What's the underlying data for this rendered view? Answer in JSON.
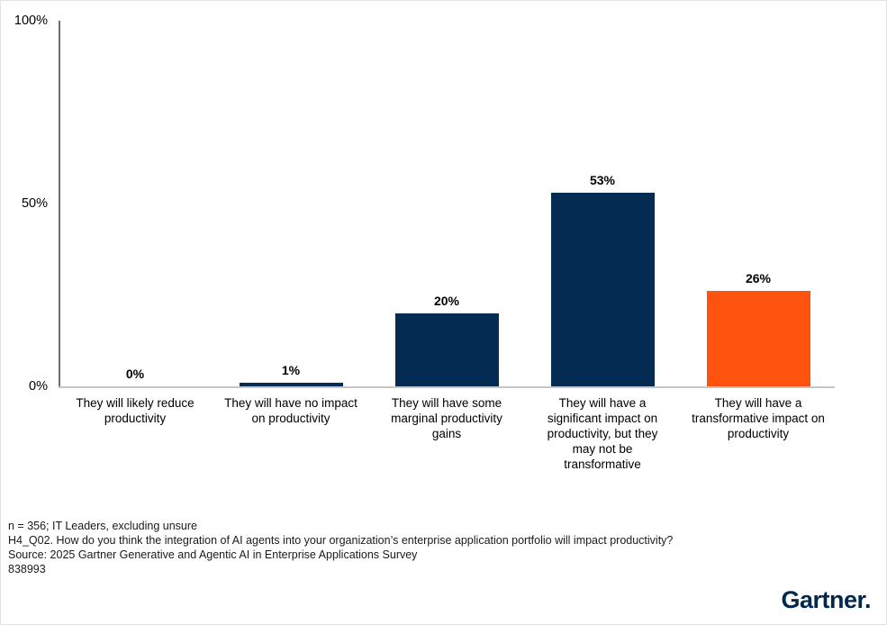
{
  "colors": {
    "bar_navy": "#042b52",
    "bar_orange": "#ff530f",
    "y_axis_line": "#6e6e6e",
    "x_axis_line": "#c6c6c6",
    "logo_navy": "#00284d",
    "text": "#000000",
    "footer_text": "#1a1a1a"
  },
  "chart_data": {
    "type": "bar",
    "title": "",
    "xlabel": "",
    "ylabel": "",
    "ylim": [
      0,
      100
    ],
    "yticks": [
      0,
      50,
      100
    ],
    "ytick_labels": [
      "0%",
      "50%",
      "100%"
    ],
    "grid": false,
    "legend": false,
    "categories": [
      "They will likely reduce productivity",
      "They will have no impact on productivity",
      "They will have some marginal productivity gains",
      "They will have a significant impact on productivity, but they may not be transformative",
      "They will have a transformative impact on productivity"
    ],
    "category_lines": [
      [
        "They will likely reduce",
        "productivity"
      ],
      [
        "They will have no impact",
        "on productivity"
      ],
      [
        "They will have some",
        "marginal productivity",
        "gains"
      ],
      [
        "They will have a",
        "significant impact on",
        "productivity, but they",
        "may not be",
        "transformative"
      ],
      [
        "They will have a",
        "transformative impact on",
        "productivity"
      ]
    ],
    "values": [
      0,
      1,
      20,
      53,
      26
    ],
    "value_labels": [
      "0%",
      "1%",
      "20%",
      "53%",
      "26%"
    ],
    "bar_colors": [
      "#042b52",
      "#042b52",
      "#042b52",
      "#042b52",
      "#ff530f"
    ]
  },
  "footer": {
    "note": "n = 356; IT Leaders, excluding unsure",
    "question": "H4_Q02. How do you think the integration of AI agents into your organization’s enterprise application portfolio will impact productivity?",
    "source": "Source: 2025 Gartner Generative and Agentic AI in Enterprise Applications Survey",
    "id": "838993"
  },
  "logo": {
    "text": "Gartner."
  }
}
